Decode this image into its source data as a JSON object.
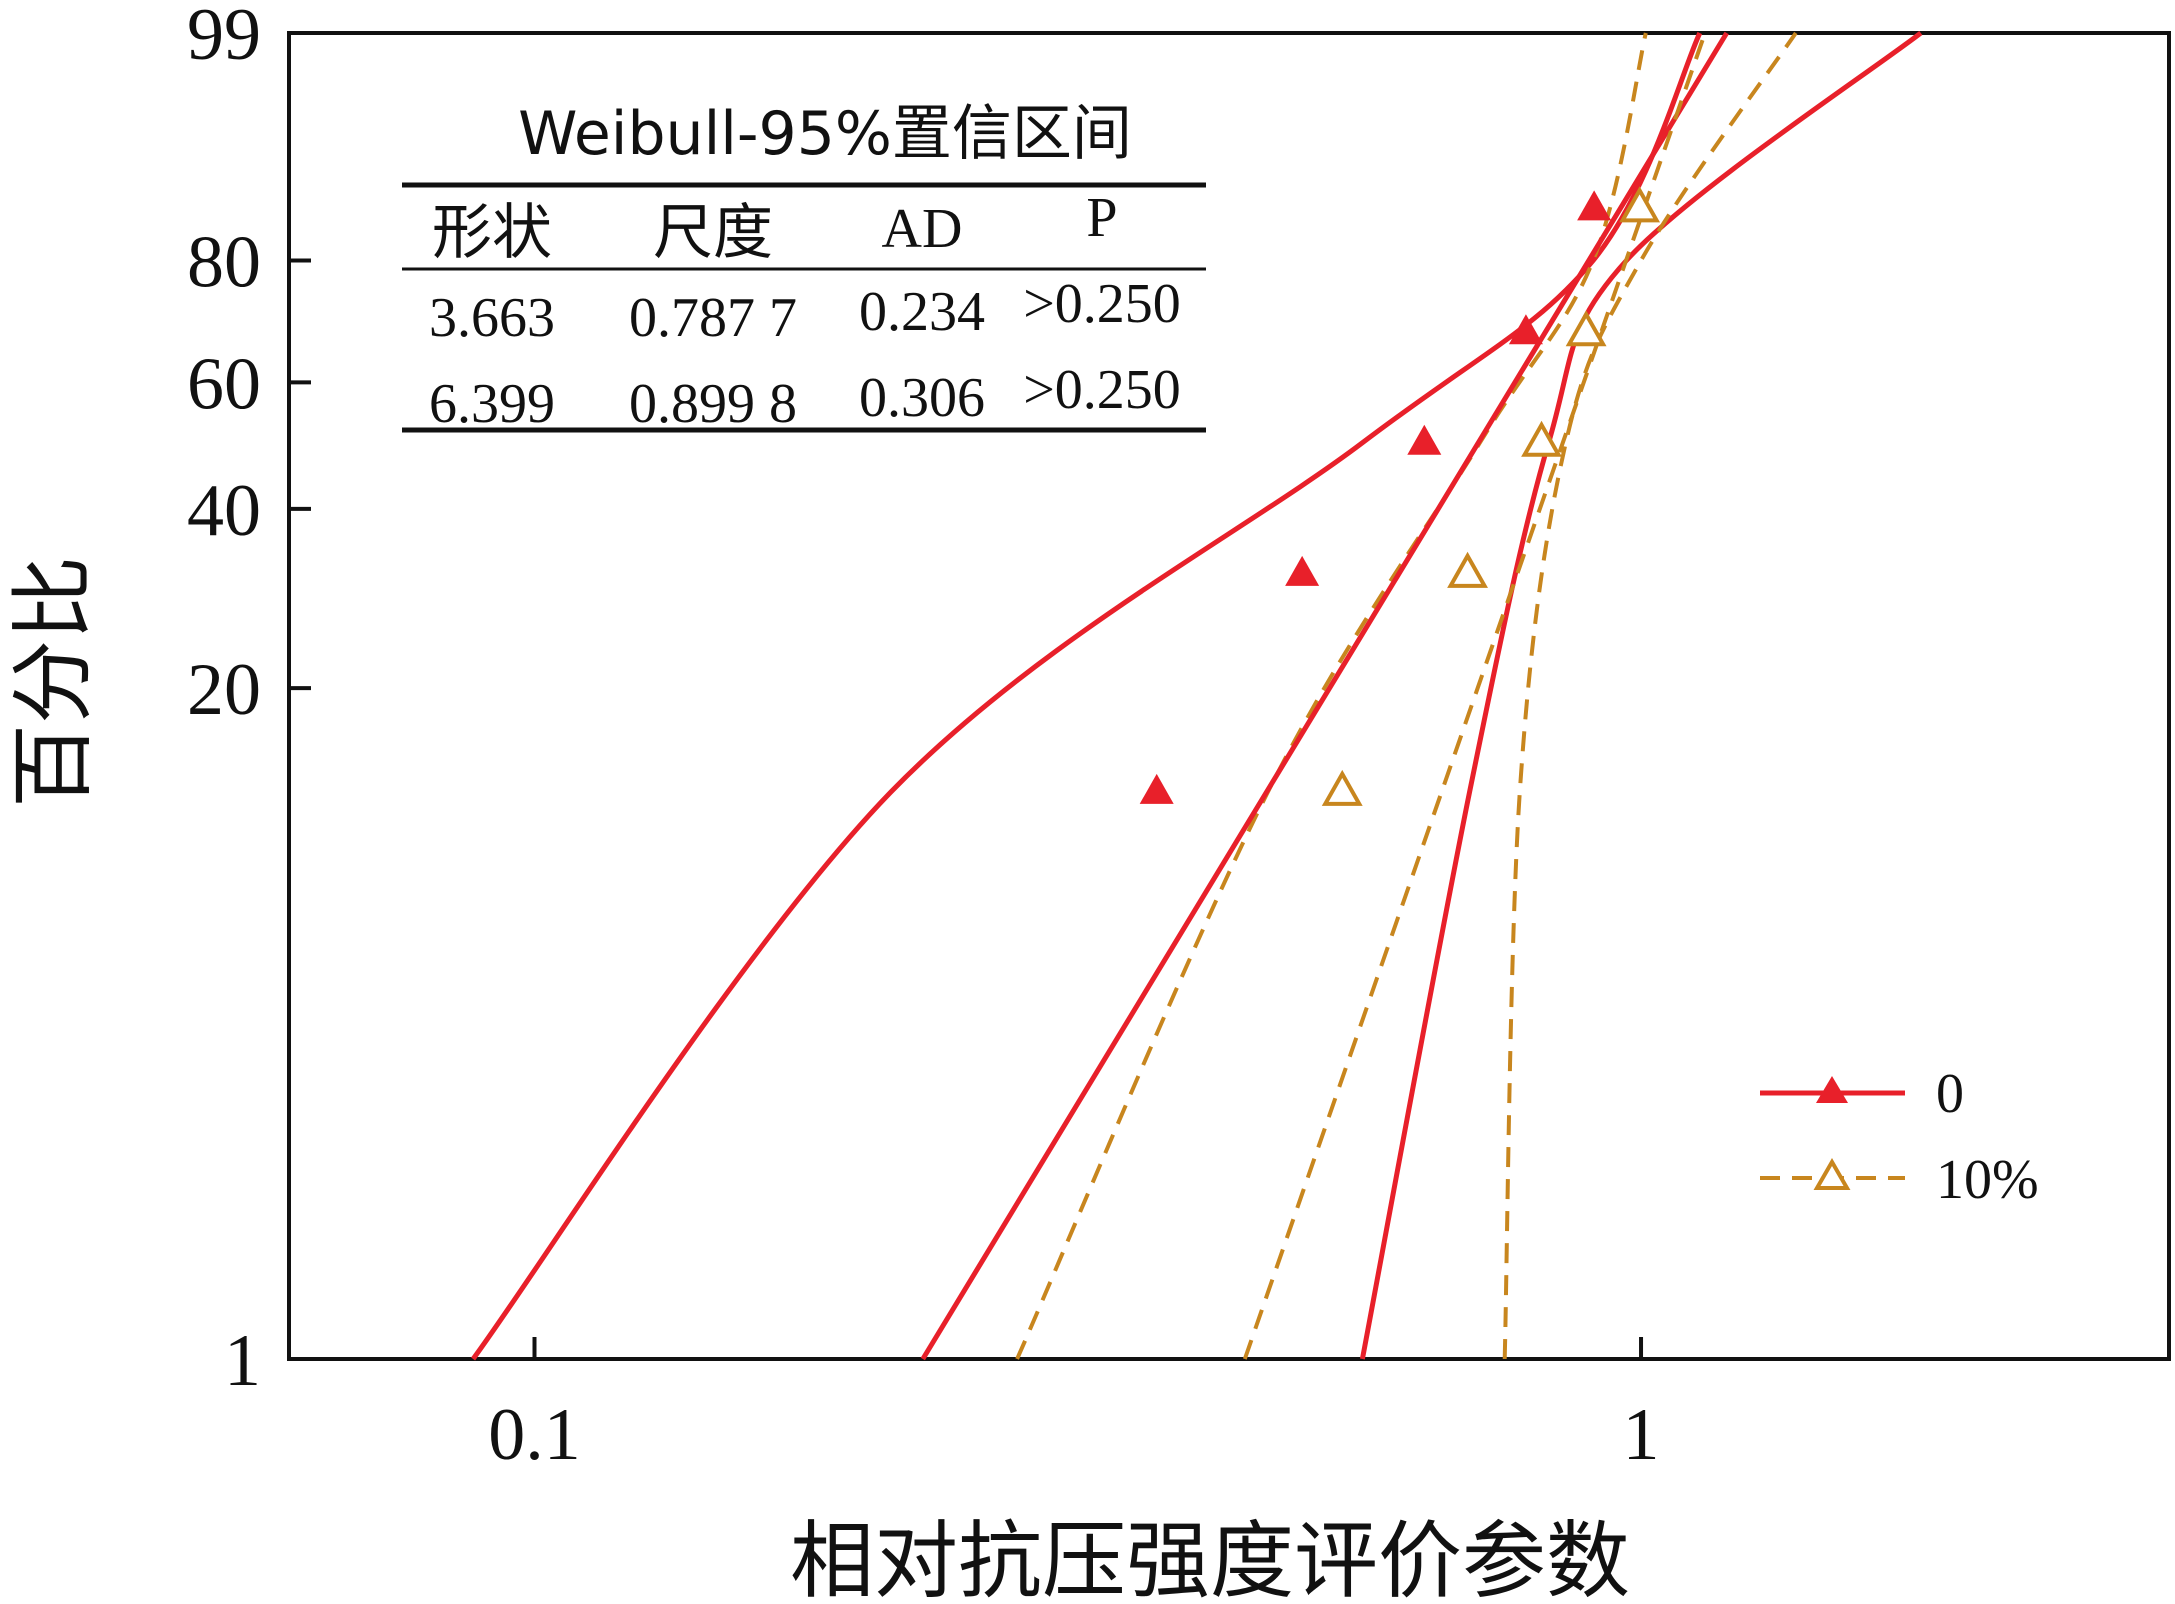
{
  "chart_data": {
    "type": "scatter",
    "title": "",
    "xlabel": "相对抗压强度评价参数",
    "ylabel": "百分比",
    "x_scale": "log",
    "y_scale": "weibull-probability",
    "xlim": [
      0.06,
      3
    ],
    "ylim": [
      1,
      99
    ],
    "x_ticks": [
      "0.1",
      "1"
    ],
    "y_ticks": [
      "1",
      "20",
      "40",
      "60",
      "80",
      "99"
    ],
    "grid": false,
    "legend_position": "bottom-right",
    "colors": {
      "series_0": "#e8202a",
      "series_10": "#c8861e"
    },
    "series": [
      {
        "name": "0",
        "marker": "filled-triangle",
        "line": "solid",
        "shape": 3.663,
        "scale": 0.7877,
        "points": [
          {
            "x": 0.365,
            "y": 12.9
          },
          {
            "x": 0.494,
            "y": 31.5
          },
          {
            "x": 0.637,
            "y": 50.0
          },
          {
            "x": 0.787,
            "y": 68.5
          },
          {
            "x": 0.907,
            "y": 87.1
          }
        ],
        "ci_band": {
          "lower": [
            {
              "y": 1,
              "x": 0.56
            },
            {
              "y": 12.9,
              "x": 0.7
            },
            {
              "y": 50,
              "x": 0.825
            },
            {
              "y": 80,
              "x": 0.97
            },
            {
              "y": 99,
              "x": 1.79
            }
          ],
          "upper": [
            {
              "y": 1,
              "x": 0.088
            },
            {
              "y": 12.9,
              "x": 0.21
            },
            {
              "y": 50,
              "x": 0.56
            },
            {
              "y": 80,
              "x": 0.905
            },
            {
              "y": 99,
              "x": 1.13
            }
          ]
        }
      },
      {
        "name": "10%",
        "marker": "open-triangle",
        "line": "dashed",
        "shape": 6.399,
        "scale": 0.8998,
        "points": [
          {
            "x": 0.537,
            "y": 12.9
          },
          {
            "x": 0.697,
            "y": 31.5
          },
          {
            "x": 0.813,
            "y": 50.0
          },
          {
            "x": 0.892,
            "y": 68.5
          },
          {
            "x": 0.997,
            "y": 87.1
          }
        ],
        "ci_band": {
          "lower": [
            {
              "y": 1,
              "x": 0.753
            },
            {
              "y": 12.9,
              "x": 0.777
            },
            {
              "y": 50,
              "x": 0.855
            },
            {
              "y": 80,
              "x": 1.0
            },
            {
              "y": 99,
              "x": 1.38
            }
          ],
          "upper": [
            {
              "y": 1,
              "x": 0.273
            },
            {
              "y": 12.9,
              "x": 0.46
            },
            {
              "y": 50,
              "x": 0.715
            },
            {
              "y": 80,
              "x": 0.905
            },
            {
              "y": 99,
              "x": 1.01
            }
          ]
        }
      }
    ],
    "stats_table": {
      "title": "Weibull-95%置信区间",
      "headers": [
        "形状",
        "尺度",
        "AD",
        "P"
      ],
      "rows": [
        [
          "3.663",
          "0.787 7",
          "0.234",
          ">0.250"
        ],
        [
          "6.399",
          "0.899 8",
          "0.306",
          ">0.250"
        ]
      ]
    }
  }
}
